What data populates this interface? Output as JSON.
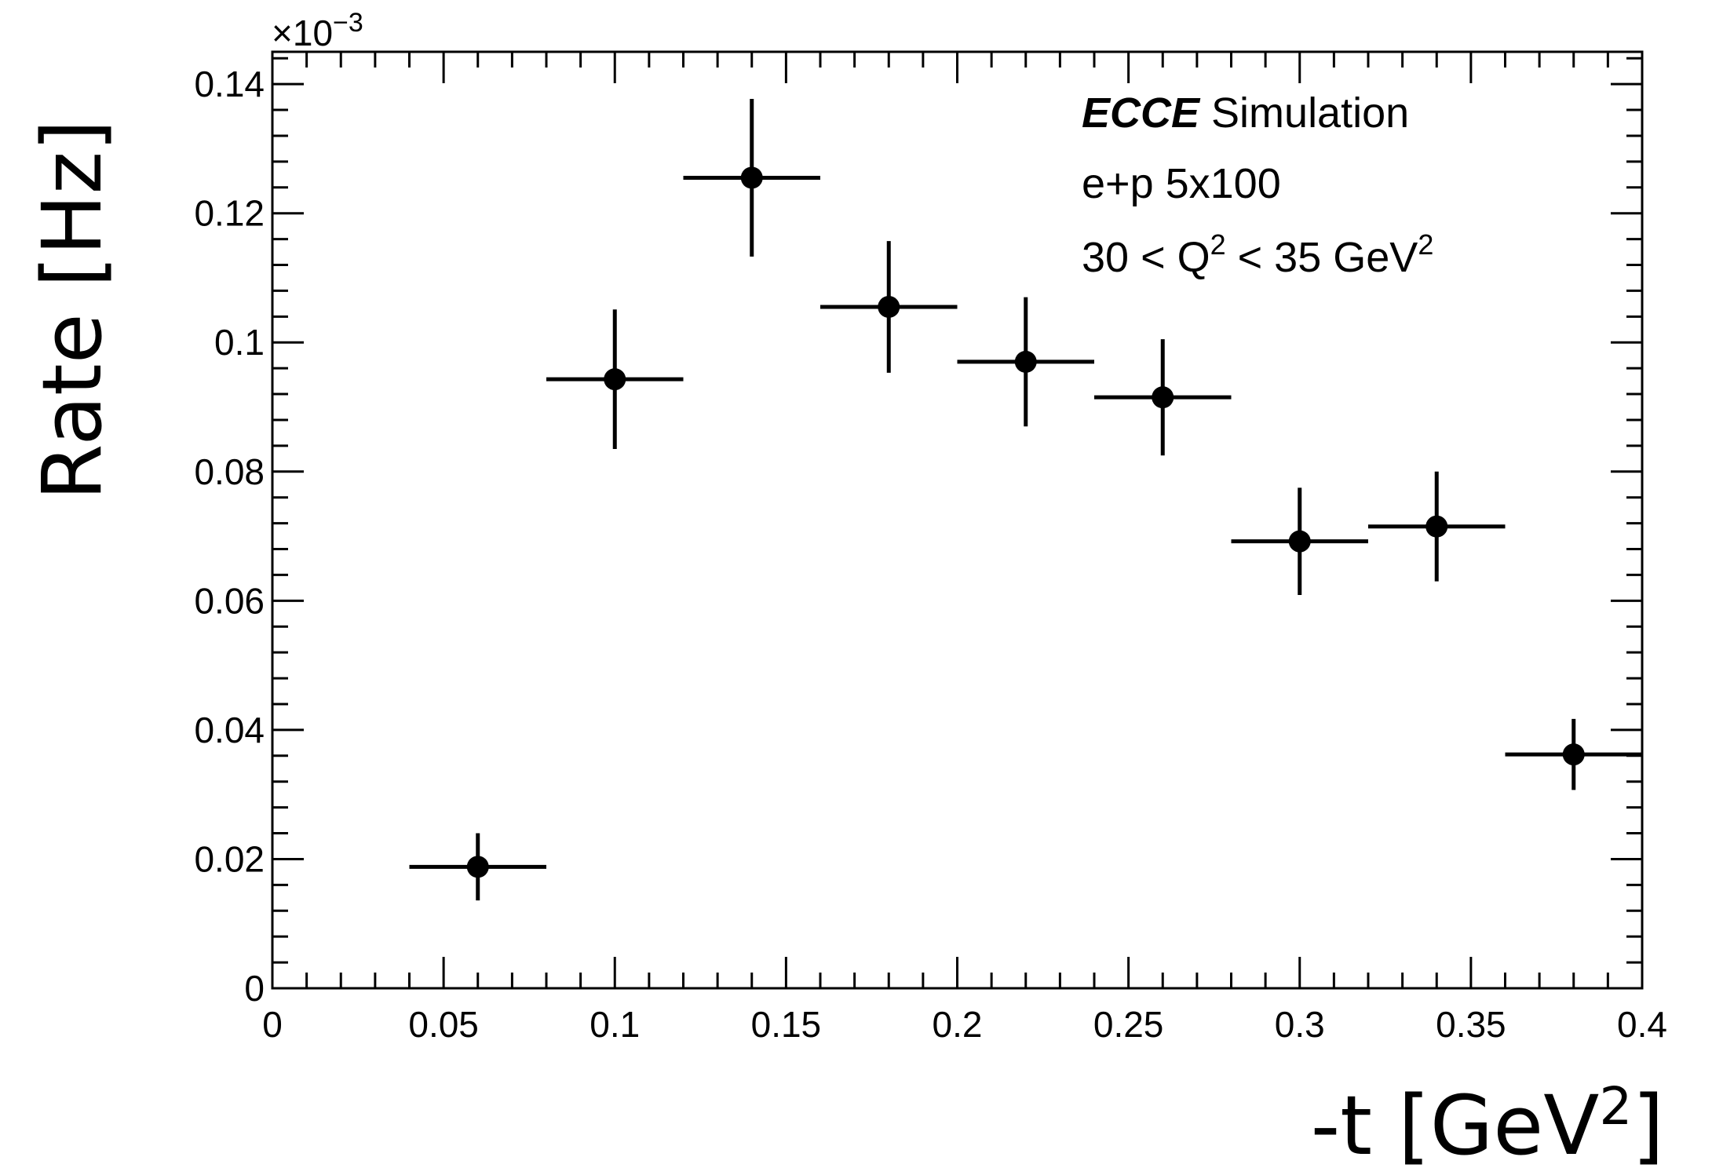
{
  "chart_data": {
    "type": "scatter",
    "xlabel_main": "-t [GeV",
    "xlabel_sup": "2",
    "xlabel_end": "]",
    "ylabel": "Rate [Hz]",
    "y_multiplier_base": "×10",
    "y_multiplier_exp": "−3",
    "xlim": [
      0,
      0.4
    ],
    "ylim": [
      0,
      0.145
    ],
    "x_ticks": [
      {
        "value": 0,
        "label": "0"
      },
      {
        "value": 0.05,
        "label": "0.05"
      },
      {
        "value": 0.1,
        "label": "0.1"
      },
      {
        "value": 0.15,
        "label": "0.15"
      },
      {
        "value": 0.2,
        "label": "0.2"
      },
      {
        "value": 0.25,
        "label": "0.25"
      },
      {
        "value": 0.3,
        "label": "0.3"
      },
      {
        "value": 0.35,
        "label": "0.35"
      },
      {
        "value": 0.4,
        "label": "0.4"
      }
    ],
    "y_ticks": [
      {
        "value": 0,
        "label": "0"
      },
      {
        "value": 0.02,
        "label": "0.02"
      },
      {
        "value": 0.04,
        "label": "0.04"
      },
      {
        "value": 0.06,
        "label": "0.06"
      },
      {
        "value": 0.08,
        "label": "0.08"
      },
      {
        "value": 0.1,
        "label": "0.1"
      },
      {
        "value": 0.12,
        "label": "0.12"
      },
      {
        "value": 0.14,
        "label": "0.14"
      }
    ],
    "points": [
      {
        "x": 0.06,
        "y": 0.0188,
        "xerr": 0.02,
        "yerr": 0.0052
      },
      {
        "x": 0.1,
        "y": 0.0943,
        "xerr": 0.02,
        "yerr": 0.0108
      },
      {
        "x": 0.14,
        "y": 0.1255,
        "xerr": 0.02,
        "yerr": 0.0122
      },
      {
        "x": 0.18,
        "y": 0.1055,
        "xerr": 0.02,
        "yerr": 0.0102
      },
      {
        "x": 0.22,
        "y": 0.097,
        "xerr": 0.02,
        "yerr": 0.01
      },
      {
        "x": 0.26,
        "y": 0.0915,
        "xerr": 0.02,
        "yerr": 0.009
      },
      {
        "x": 0.3,
        "y": 0.0692,
        "xerr": 0.02,
        "yerr": 0.0083
      },
      {
        "x": 0.34,
        "y": 0.0715,
        "xerr": 0.02,
        "yerr": 0.0085
      },
      {
        "x": 0.38,
        "y": 0.0362,
        "xerr": 0.02,
        "yerr": 0.0055
      }
    ],
    "legend": {
      "bold": "ECCE",
      "line1_rest": " Simulation",
      "line2": "e+p 5x100",
      "line3_a": "30 < Q",
      "line3_sup1": "2",
      "line3_b": " < 35 GeV",
      "line3_sup2": "2"
    },
    "grid": false,
    "legend_position": "top-right"
  }
}
